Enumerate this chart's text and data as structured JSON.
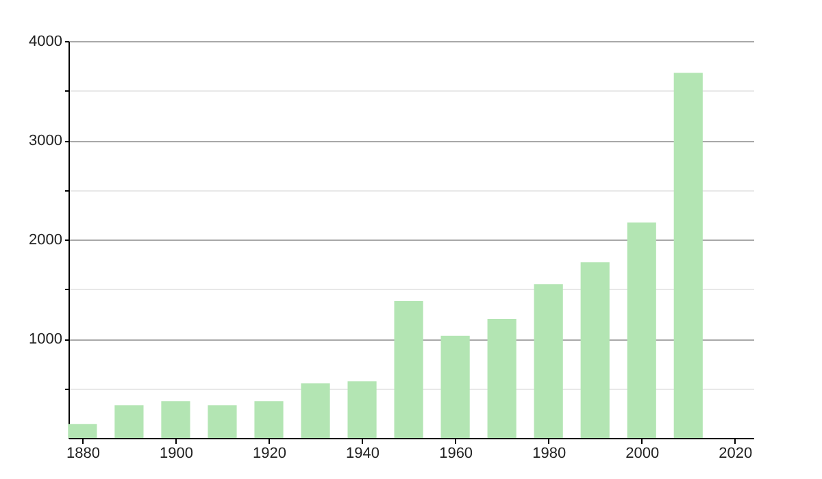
{
  "chart_data": {
    "type": "bar",
    "x": [
      1880,
      1890,
      1900,
      1910,
      1920,
      1930,
      1940,
      1950,
      1960,
      1970,
      1980,
      1990,
      2000,
      2010
    ],
    "values": [
      140,
      330,
      370,
      330,
      370,
      550,
      570,
      1380,
      1030,
      1200,
      1550,
      1770,
      2170,
      3680
    ],
    "color": "#b3e5b3",
    "xlim": [
      1877,
      2024
    ],
    "xticks": [
      1880,
      1900,
      1920,
      1940,
      1960,
      1980,
      2000,
      2020
    ],
    "ylim": [
      0,
      4000
    ],
    "yticks": [
      {
        "value": 500,
        "label": null
      },
      1000,
      {
        "value": 1500,
        "label": null
      },
      2000,
      {
        "value": 2500,
        "label": null
      },
      3000,
      {
        "value": 3500,
        "label": null
      },
      4000
    ],
    "grid": "y"
  }
}
